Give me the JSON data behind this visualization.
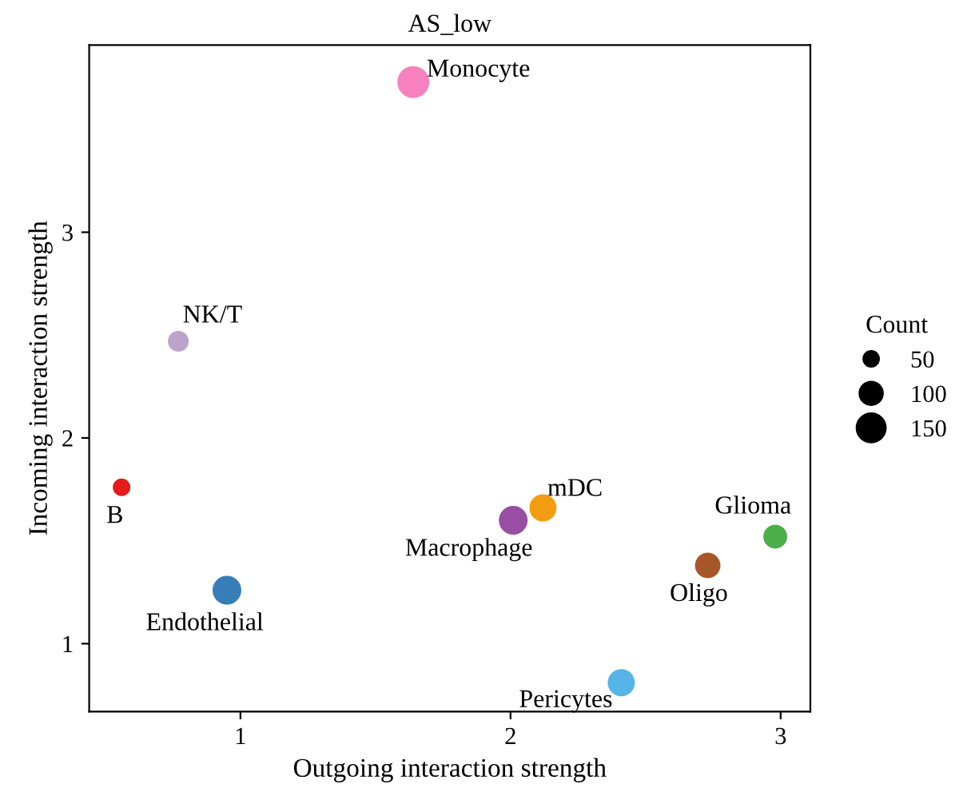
{
  "chart_data": {
    "type": "bubble",
    "title": "AS_low",
    "xlabel": "Outgoing interaction strength",
    "ylabel": "Incoming interaction strength",
    "legend_title": "Count",
    "size_legend": [
      50,
      100,
      150
    ],
    "series": [
      {
        "name": "Monocyte",
        "color": "#f781bf",
        "x": [
          1.64
        ],
        "values": [
          3.73
        ],
        "sizes": [
          182
        ]
      },
      {
        "name": "NK/T",
        "color": "#bca3cc",
        "x": [
          0.77
        ],
        "values": [
          2.47
        ],
        "sizes": [
          84
        ]
      },
      {
        "name": "B",
        "color": "#e41a1c",
        "x": [
          0.56
        ],
        "values": [
          1.76
        ],
        "sizes": [
          63
        ]
      },
      {
        "name": "Endothelial",
        "color": "#377eb8",
        "x": [
          0.95
        ],
        "values": [
          1.26
        ],
        "sizes": [
          150
        ]
      },
      {
        "name": "Macrophage",
        "color": "#984ea3",
        "x": [
          2.01
        ],
        "values": [
          1.6
        ],
        "sizes": [
          150
        ]
      },
      {
        "name": "mDC",
        "color": "#f39c12",
        "x": [
          2.12
        ],
        "values": [
          1.66
        ],
        "sizes": [
          135
        ]
      },
      {
        "name": "Glioma",
        "color": "#4daf4a",
        "x": [
          2.98
        ],
        "values": [
          1.52
        ],
        "sizes": [
          107
        ]
      },
      {
        "name": "Oligo",
        "color": "#a65628",
        "x": [
          2.73
        ],
        "values": [
          1.38
        ],
        "sizes": [
          120
        ]
      },
      {
        "name": "Pericytes",
        "color": "#56b4e9",
        "x": [
          2.41
        ],
        "values": [
          0.81
        ],
        "sizes": [
          135
        ]
      }
    ],
    "xlim": [
      0.44,
      3.11
    ],
    "ylim": [
      0.67,
      3.91
    ],
    "xticks": [
      1,
      2,
      3
    ],
    "yticks": [
      1,
      2,
      3
    ],
    "grid": false,
    "legend": "right"
  }
}
